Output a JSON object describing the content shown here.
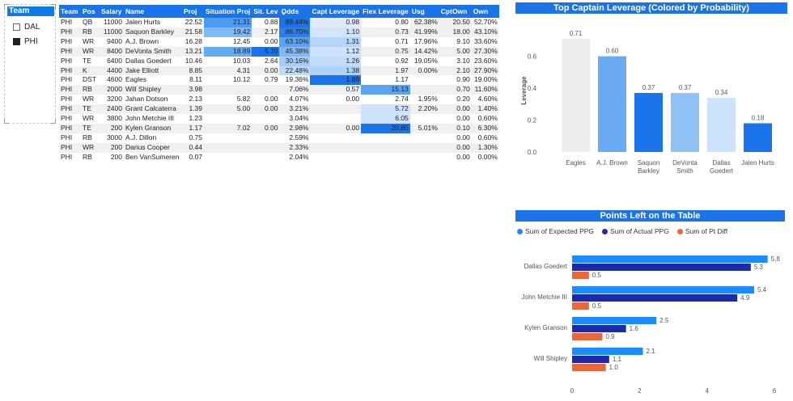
{
  "slicer": {
    "header": "Team",
    "options": [
      {
        "label": "DAL",
        "selected": false
      },
      {
        "label": "PHI",
        "selected": true
      }
    ]
  },
  "table": {
    "columns": [
      "Team",
      "Pos",
      "Salary",
      "Name",
      "Proj",
      "Situation Proj",
      "Sit. Lev",
      "Odds",
      "Capt Leverage",
      "Flex Leverage",
      "Usg",
      "CptOwn",
      "Own"
    ],
    "sorted_column": "Odds",
    "rows": [
      [
        "PHI",
        "QB",
        "11000",
        "Jalen Hurts",
        "22.52",
        "21.31",
        "0.88",
        "89.44%",
        "0.98",
        "0.80",
        "62.38%",
        "20.50",
        "52.70%"
      ],
      [
        "PHI",
        "RB",
        "11000",
        "Saquon Barkley",
        "21.58",
        "19.42",
        "2.17",
        "86.70%",
        "1.10",
        "0.73",
        "41.99%",
        "18.00",
        "43.10%"
      ],
      [
        "PHI",
        "WR",
        "9400",
        "A.J. Brown",
        "16.28",
        "12.45",
        "0.00",
        "63.10%",
        "1.31",
        "0.71",
        "17.96%",
        "9.10",
        "33.60%"
      ],
      [
        "PHI",
        "WR",
        "8400",
        "DeVonta Smith",
        "13.21",
        "18.89",
        "5.70",
        "45.38%",
        "1.12",
        "0.75",
        "14.42%",
        "5.00",
        "27.30%"
      ],
      [
        "PHI",
        "TE",
        "6400",
        "Dallas Goedert",
        "10.46",
        "10.03",
        "2.64",
        "30.16%",
        "1.26",
        "0.92",
        "19.05%",
        "3.10",
        "23.60%"
      ],
      [
        "PHI",
        "K",
        "4400",
        "Jake Elliott",
        "8.85",
        "4.31",
        "0.00",
        "22.48%",
        "1.38",
        "1.97",
        "0.00%",
        "2.10",
        "27.90%"
      ],
      [
        "PHI",
        "DST",
        "4600",
        "Eagles",
        "8.11",
        "10.12",
        "0.79",
        "19.36%",
        "1.89",
        "1.17",
        "",
        "0.90",
        "19.00%"
      ],
      [
        "PHI",
        "RB",
        "2000",
        "Will Shipley",
        "3.98",
        "",
        "",
        "7.06%",
        "0.57",
        "15.13",
        "",
        "0.70",
        "11.60%"
      ],
      [
        "PHI",
        "WR",
        "3200",
        "Jahan Dotson",
        "2.13",
        "5.82",
        "0.00",
        "4.07%",
        "0.00",
        "2.74",
        "1.95%",
        "0.20",
        "4.60%"
      ],
      [
        "PHI",
        "TE",
        "2400",
        "Grant Calcaterra",
        "1.39",
        "5.00",
        "0.00",
        "3.21%",
        "",
        "5.72",
        "2.20%",
        "0.00",
        "1.40%"
      ],
      [
        "PHI",
        "WR",
        "3800",
        "John Metchie III",
        "1.23",
        "",
        "",
        "3.04%",
        "",
        "6.05",
        "",
        "0.00",
        "0.60%"
      ],
      [
        "PHI",
        "TE",
        "200",
        "Kylen Granson",
        "1.17",
        "7.02",
        "0.00",
        "2.98%",
        "0.00",
        "20.85",
        "5.01%",
        "0.10",
        "6.30%"
      ],
      [
        "PHI",
        "RB",
        "3000",
        "A.J. Dillon",
        "0.75",
        "",
        "",
        "2.59%",
        "",
        "",
        "",
        "0.00",
        "0.60%"
      ],
      [
        "PHI",
        "WR",
        "200",
        "Darius Cooper",
        "0.44",
        "",
        "",
        "2.33%",
        "",
        "",
        "",
        "0.00",
        "1.30%"
      ],
      [
        "PHI",
        "RB",
        "200",
        "Ben VanSumeren",
        "0.07",
        "",
        "",
        "2.04%",
        "",
        "",
        "",
        "0.00",
        "0.00%"
      ]
    ],
    "cell_colors": {
      "sit_proj": {
        "0": "#4d9cf2",
        "1": "#7fb8f6",
        "3": "#66aaf4"
      },
      "sit_lev": {
        "3": "#1a73e8"
      },
      "odds": {
        "0": "#1a73e8",
        "1": "#2c80ea",
        "2": "#5aa2f2",
        "3": "#82b9f5",
        "4": "#a4ccf7",
        "5": "#bcdaf9"
      },
      "capt": {
        "0": "#dfeafd",
        "1": "#d4e5fb",
        "2": "#b6d5f9",
        "3": "#cfe2fb",
        "4": "#c2dbf9",
        "5": "#b0d2f8",
        "6": "#1a73e8"
      },
      "flex": {
        "7": "#5ba3f2",
        "9": "#cfe2fb",
        "10": "#cfe2fb",
        "11": "#1a73e8"
      },
      "usg": {
        "0": "#f0f0f0"
      },
      "cptown": {
        "0": "#f0f0f0",
        "1": "#f0f0f0"
      }
    }
  },
  "captain_chart": {
    "title": "Top Captain Leverage (Colored by Probability)",
    "chart_data": {
      "type": "bar",
      "categories": [
        "Eagles",
        "A.J. Brown",
        "Saquon Barkley",
        "DeVonta Smith",
        "Dallas Goedert",
        "Jalen Hurts"
      ],
      "category_lines": [
        [
          "Eagles"
        ],
        [
          "A.J. Brown"
        ],
        [
          "Saquon",
          "Barkley"
        ],
        [
          "DeVonta",
          "Smith"
        ],
        [
          "Dallas",
          "Goedert"
        ],
        [
          "Jalen Hurts"
        ]
      ],
      "values": [
        0.71,
        0.6,
        0.37,
        0.37,
        0.34,
        0.18
      ],
      "value_labels": [
        "0.71",
        "0.60",
        "0.37",
        "0.37",
        "0.34",
        "0.18"
      ],
      "colors": [
        "#eeeeee",
        "#6aaaf3",
        "#1a73e8",
        "#8fc1f6",
        "#cde2fb",
        "#1a73e8"
      ],
      "ylabel": "Leverage",
      "yticks": [
        "0.0",
        "0.2",
        "0.4",
        "0.6"
      ],
      "ylim": [
        0,
        0.75
      ]
    }
  },
  "points_chart": {
    "title": "Points Left on the Table",
    "chart_data": {
      "type": "bar",
      "orientation": "horizontal",
      "categories": [
        "Dallas Goedert",
        "John Metchie III",
        "Kylen Granson",
        "Will Shipley"
      ],
      "series": [
        {
          "name": "Sum of Expected PPG",
          "color": "#1a8cff",
          "values": [
            5.8,
            5.4,
            2.5,
            2.1
          ],
          "labels": [
            "5.8",
            "5.4",
            "2.5",
            "2.1"
          ]
        },
        {
          "name": "Sum of Actual PPG",
          "color": "#1a2aa8",
          "values": [
            5.3,
            4.9,
            1.6,
            1.1
          ],
          "labels": [
            "5.3",
            "4.9",
            "1.6",
            "1.1"
          ]
        },
        {
          "name": "Sum of Pt Diff",
          "color": "#e8683a",
          "values": [
            0.5,
            0.5,
            0.9,
            1.0
          ],
          "labels": [
            "0.5",
            "0.5",
            "0.9",
            "1.0"
          ]
        }
      ],
      "xticks": [
        "0",
        "2",
        "4",
        "6"
      ],
      "xlim": [
        0,
        6
      ]
    }
  }
}
